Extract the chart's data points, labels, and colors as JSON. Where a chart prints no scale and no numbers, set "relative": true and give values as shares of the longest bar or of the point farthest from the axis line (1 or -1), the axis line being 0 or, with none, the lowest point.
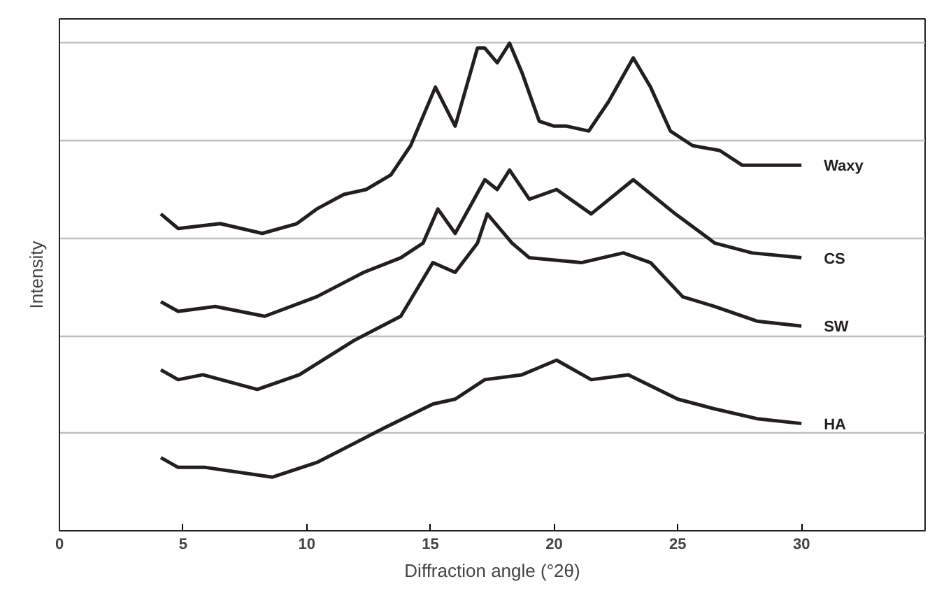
{
  "chart_data": {
    "type": "line",
    "relative": true,
    "xlabel": "Diffraction angle (°2θ)",
    "ylabel": "Intensity",
    "xlim": [
      0,
      35
    ],
    "xticks": [
      0,
      5,
      10,
      15,
      20,
      25,
      30
    ],
    "grid": "y",
    "tick_labels": "x",
    "marker": "none",
    "line_style": "solid",
    "series": [
      {
        "name": "Waxy",
        "color": "#231f20",
        "x": [
          4.1,
          4.8,
          6.5,
          8.2,
          9.6,
          10.4,
          11.5,
          12.4,
          13.4,
          14.2,
          15.2,
          16.0,
          16.9,
          17.2,
          17.7,
          18.2,
          18.7,
          19.4,
          20.0,
          20.5,
          21.4,
          22.2,
          23.2,
          23.9,
          24.7,
          25.6,
          26.7,
          27.6,
          28.4,
          30.0
        ],
        "values": [
          0.65,
          0.62,
          0.63,
          0.61,
          0.63,
          0.66,
          0.69,
          0.7,
          0.73,
          0.79,
          0.91,
          0.83,
          0.99,
          0.99,
          0.96,
          1.0,
          0.94,
          0.84,
          0.83,
          0.83,
          0.82,
          0.88,
          0.97,
          0.91,
          0.82,
          0.79,
          0.78,
          0.75,
          0.75,
          0.75
        ]
      },
      {
        "name": "CS",
        "color": "#231f20",
        "x": [
          4.1,
          4.8,
          6.3,
          8.3,
          10.4,
          12.3,
          13.8,
          14.7,
          15.3,
          16.0,
          17.2,
          17.7,
          18.2,
          19.0,
          20.1,
          21.5,
          23.2,
          24.9,
          26.5,
          28.0,
          30.0
        ],
        "values": [
          0.47,
          0.45,
          0.46,
          0.44,
          0.48,
          0.53,
          0.56,
          0.59,
          0.66,
          0.61,
          0.72,
          0.7,
          0.74,
          0.68,
          0.7,
          0.65,
          0.72,
          0.65,
          0.59,
          0.57,
          0.56
        ]
      },
      {
        "name": "SW",
        "color": "#231f20",
        "x": [
          4.1,
          4.8,
          5.8,
          8.0,
          9.7,
          11.9,
          13.8,
          15.1,
          16.0,
          16.9,
          17.3,
          18.3,
          19.0,
          21.1,
          22.8,
          23.9,
          25.2,
          26.5,
          28.2,
          30.0
        ],
        "values": [
          0.33,
          0.31,
          0.32,
          0.29,
          0.32,
          0.39,
          0.44,
          0.55,
          0.53,
          0.59,
          0.65,
          0.59,
          0.56,
          0.55,
          0.57,
          0.55,
          0.48,
          0.46,
          0.43,
          0.42
        ]
      },
      {
        "name": "HA",
        "color": "#231f20",
        "x": [
          4.1,
          4.8,
          5.9,
          8.6,
          10.4,
          13.1,
          15.1,
          16.0,
          17.2,
          18.7,
          20.1,
          21.5,
          23.0,
          25.0,
          26.5,
          28.2,
          30.0
        ],
        "values": [
          0.15,
          0.13,
          0.13,
          0.11,
          0.14,
          0.21,
          0.26,
          0.27,
          0.31,
          0.32,
          0.35,
          0.31,
          0.32,
          0.27,
          0.25,
          0.23,
          0.22
        ]
      }
    ]
  }
}
